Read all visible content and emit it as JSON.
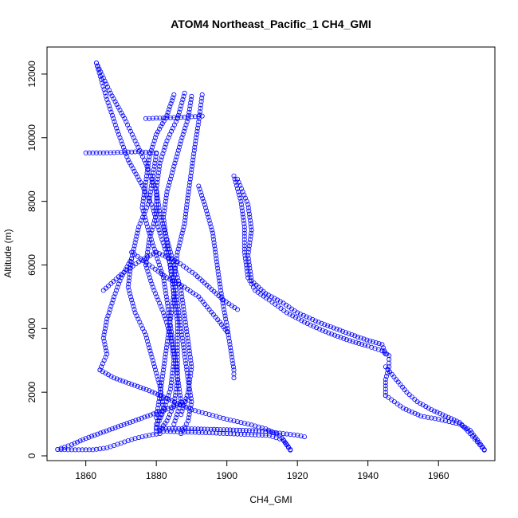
{
  "chart_data": {
    "type": "scatter",
    "title": "ATOM4 Northeast_Pacific_1 CH4_GMI",
    "xlabel": "CH4_GMI",
    "ylabel": "Altitude (m)",
    "xlim": [
      1849,
      1976
    ],
    "ylim": [
      -150,
      12850
    ],
    "x_ticks": [
      1860,
      1880,
      1900,
      1920,
      1940,
      1960
    ],
    "y_ticks": [
      0,
      2000,
      4000,
      6000,
      8000,
      10000,
      12000
    ],
    "grid": false,
    "legend": "none",
    "marker": "open-circle",
    "color": "#0000ff",
    "profiles": [
      {
        "points": [
          [
            1863,
            12350
          ],
          [
            1866,
            11200
          ],
          [
            1869,
            10200
          ],
          [
            1872,
            9300
          ],
          [
            1876,
            8500
          ],
          [
            1879,
            7800
          ],
          [
            1881,
            7000
          ],
          [
            1884,
            6000
          ],
          [
            1885,
            5000
          ],
          [
            1886,
            4200
          ],
          [
            1886,
            3300
          ],
          [
            1886,
            2400
          ],
          [
            1885,
            1600
          ],
          [
            1883,
            1100
          ],
          [
            1881,
            800
          ]
        ]
      },
      {
        "points": [
          [
            1863,
            12350
          ],
          [
            1867,
            11400
          ],
          [
            1871,
            10600
          ],
          [
            1874,
            9900
          ],
          [
            1877,
            9200
          ],
          [
            1880,
            8300
          ],
          [
            1880,
            7600
          ],
          [
            1878,
            6800
          ],
          [
            1877,
            6000
          ],
          [
            1879,
            5300
          ],
          [
            1882,
            4500
          ],
          [
            1884,
            3800
          ],
          [
            1885,
            3000
          ],
          [
            1884,
            2100
          ],
          [
            1882,
            1400
          ],
          [
            1880,
            900
          ]
        ]
      },
      {
        "points": [
          [
            1860,
            9520
          ],
          [
            1865,
            9520
          ],
          [
            1870,
            9540
          ],
          [
            1875,
            9560
          ],
          [
            1880,
            9520
          ]
        ]
      },
      {
        "points": [
          [
            1880,
            9500
          ],
          [
            1879,
            8800
          ],
          [
            1878,
            8000
          ],
          [
            1875,
            7200
          ],
          [
            1873,
            6200
          ],
          [
            1872,
            5300
          ],
          [
            1874,
            4500
          ],
          [
            1877,
            3800
          ],
          [
            1879,
            3000
          ],
          [
            1881,
            2200
          ],
          [
            1882,
            1500
          ],
          [
            1880,
            1000
          ]
        ]
      },
      {
        "points": [
          [
            1877,
            10600
          ],
          [
            1882,
            10620
          ],
          [
            1887,
            10640
          ],
          [
            1893,
            10680
          ]
        ]
      },
      {
        "points": [
          [
            1893,
            11350
          ],
          [
            1892,
            10500
          ],
          [
            1891,
            9800
          ],
          [
            1890,
            9000
          ],
          [
            1889,
            8200
          ],
          [
            1888,
            7300
          ],
          [
            1886,
            6400
          ],
          [
            1885,
            5600
          ],
          [
            1886,
            4800
          ],
          [
            1887,
            4000
          ],
          [
            1888,
            3200
          ],
          [
            1889,
            2400
          ],
          [
            1890,
            1700
          ],
          [
            1889,
            1100
          ],
          [
            1887,
            700
          ]
        ]
      },
      {
        "points": [
          [
            1885,
            11350
          ],
          [
            1883,
            10700
          ],
          [
            1880,
            10100
          ],
          [
            1878,
            9400
          ],
          [
            1877,
            8600
          ],
          [
            1876,
            7800
          ],
          [
            1878,
            7000
          ],
          [
            1880,
            6300
          ],
          [
            1882,
            5600
          ],
          [
            1883,
            4900
          ],
          [
            1884,
            4100
          ],
          [
            1885,
            3300
          ],
          [
            1886,
            2500
          ],
          [
            1887,
            1700
          ],
          [
            1885,
            1000
          ]
        ]
      },
      {
        "points": [
          [
            1888,
            11400
          ],
          [
            1886,
            10600
          ],
          [
            1883,
            9900
          ],
          [
            1881,
            9200
          ],
          [
            1880,
            8400
          ],
          [
            1881,
            7600
          ],
          [
            1883,
            6800
          ],
          [
            1885,
            6000
          ],
          [
            1887,
            5200
          ],
          [
            1888,
            4400
          ],
          [
            1889,
            3600
          ],
          [
            1890,
            2800
          ],
          [
            1889,
            2000
          ],
          [
            1887,
            1300
          ]
        ]
      },
      {
        "points": [
          [
            1890,
            11300
          ],
          [
            1889,
            10600
          ],
          [
            1887,
            9900
          ],
          [
            1885,
            9100
          ],
          [
            1883,
            8300
          ],
          [
            1882,
            7500
          ],
          [
            1883,
            6700
          ],
          [
            1884,
            5900
          ],
          [
            1885,
            5100
          ],
          [
            1884,
            4300
          ],
          [
            1883,
            3500
          ],
          [
            1882,
            2700
          ],
          [
            1881,
            1900
          ],
          [
            1880,
            1200
          ]
        ]
      },
      {
        "points": [
          [
            1892,
            8480
          ],
          [
            1894,
            7800
          ],
          [
            1896,
            7000
          ],
          [
            1897,
            6200
          ],
          [
            1898,
            5400
          ],
          [
            1899,
            4700
          ],
          [
            1900,
            4100
          ],
          [
            1901,
            3400
          ],
          [
            1902,
            2700
          ],
          [
            1902,
            2450
          ]
        ]
      },
      {
        "points": [
          [
            1902,
            8800
          ],
          [
            1904,
            8000
          ],
          [
            1905,
            7200
          ],
          [
            1905,
            6400
          ],
          [
            1906,
            5600
          ],
          [
            1908,
            5200
          ],
          [
            1912,
            4900
          ],
          [
            1917,
            4500
          ],
          [
            1922,
            4200
          ],
          [
            1928,
            3900
          ],
          [
            1934,
            3650
          ],
          [
            1940,
            3450
          ],
          [
            1944,
            3300
          ],
          [
            1946,
            3150
          ],
          [
            1946,
            2800
          ],
          [
            1945,
            2400
          ],
          [
            1945,
            1900
          ]
        ]
      },
      {
        "points": [
          [
            1903,
            8700
          ],
          [
            1906,
            7900
          ],
          [
            1907,
            7100
          ],
          [
            1906,
            6300
          ],
          [
            1907,
            5500
          ],
          [
            1911,
            5100
          ],
          [
            1916,
            4800
          ],
          [
            1920,
            4500
          ],
          [
            1926,
            4200
          ],
          [
            1932,
            3950
          ],
          [
            1938,
            3700
          ],
          [
            1944,
            3500
          ],
          [
            1945,
            3200
          ]
        ]
      },
      {
        "points": [
          [
            1873,
            6200
          ],
          [
            1870,
            5600
          ],
          [
            1868,
            5000
          ],
          [
            1866,
            4300
          ],
          [
            1865,
            3700
          ],
          [
            1866,
            3200
          ],
          [
            1864,
            2700
          ]
        ]
      },
      {
        "points": [
          [
            1864,
            2700
          ],
          [
            1868,
            2450
          ],
          [
            1873,
            2250
          ],
          [
            1878,
            2050
          ],
          [
            1882,
            1850
          ],
          [
            1886,
            1650
          ],
          [
            1890,
            1450
          ],
          [
            1895,
            1300
          ],
          [
            1900,
            1150
          ],
          [
            1906,
            1000
          ],
          [
            1911,
            850
          ],
          [
            1915,
            650
          ],
          [
            1918,
            200
          ]
        ]
      },
      {
        "points": [
          [
            1852,
            200
          ],
          [
            1856,
            350
          ],
          [
            1860,
            550
          ],
          [
            1865,
            750
          ],
          [
            1870,
            950
          ],
          [
            1875,
            1150
          ],
          [
            1880,
            1350
          ],
          [
            1885,
            1550
          ],
          [
            1889,
            1750
          ]
        ]
      },
      {
        "points": [
          [
            1852,
            200
          ],
          [
            1855,
            190
          ],
          [
            1858,
            190
          ],
          [
            1862,
            190
          ],
          [
            1866,
            250
          ],
          [
            1870,
            400
          ],
          [
            1874,
            550
          ],
          [
            1878,
            650
          ],
          [
            1881,
            700
          ]
        ]
      },
      {
        "points": [
          [
            1945,
            1900
          ],
          [
            1950,
            1500
          ],
          [
            1955,
            1250
          ],
          [
            1960,
            1150
          ],
          [
            1966,
            1000
          ],
          [
            1969,
            800
          ],
          [
            1971,
            500
          ],
          [
            1973,
            200
          ]
        ]
      },
      {
        "points": [
          [
            1945,
            2800
          ],
          [
            1948,
            2400
          ],
          [
            1951,
            2000
          ],
          [
            1954,
            1700
          ],
          [
            1958,
            1450
          ],
          [
            1962,
            1250
          ],
          [
            1966,
            1050
          ],
          [
            1969,
            700
          ],
          [
            1973,
            180
          ]
        ]
      },
      {
        "points": [
          [
            1880,
            780
          ],
          [
            1888,
            750
          ],
          [
            1896,
            720
          ],
          [
            1904,
            680
          ],
          [
            1912,
            640
          ],
          [
            1916,
            500
          ],
          [
            1918,
            180
          ]
        ]
      },
      {
        "points": [
          [
            1880,
            860
          ],
          [
            1890,
            850
          ],
          [
            1900,
            820
          ],
          [
            1910,
            780
          ],
          [
            1916,
            700
          ],
          [
            1920,
            650
          ],
          [
            1922,
            600
          ]
        ]
      },
      {
        "points": [
          [
            1873,
            6400
          ],
          [
            1878,
            6000
          ],
          [
            1883,
            5600
          ],
          [
            1888,
            5300
          ],
          [
            1892,
            5000
          ],
          [
            1895,
            4600
          ],
          [
            1898,
            4200
          ],
          [
            1900,
            3900
          ]
        ]
      },
      {
        "points": [
          [
            1865,
            5200
          ],
          [
            1870,
            5700
          ],
          [
            1875,
            6100
          ],
          [
            1880,
            6400
          ],
          [
            1886,
            6100
          ],
          [
            1891,
            5700
          ],
          [
            1895,
            5300
          ],
          [
            1899,
            4900
          ],
          [
            1903,
            4600
          ]
        ]
      }
    ]
  }
}
